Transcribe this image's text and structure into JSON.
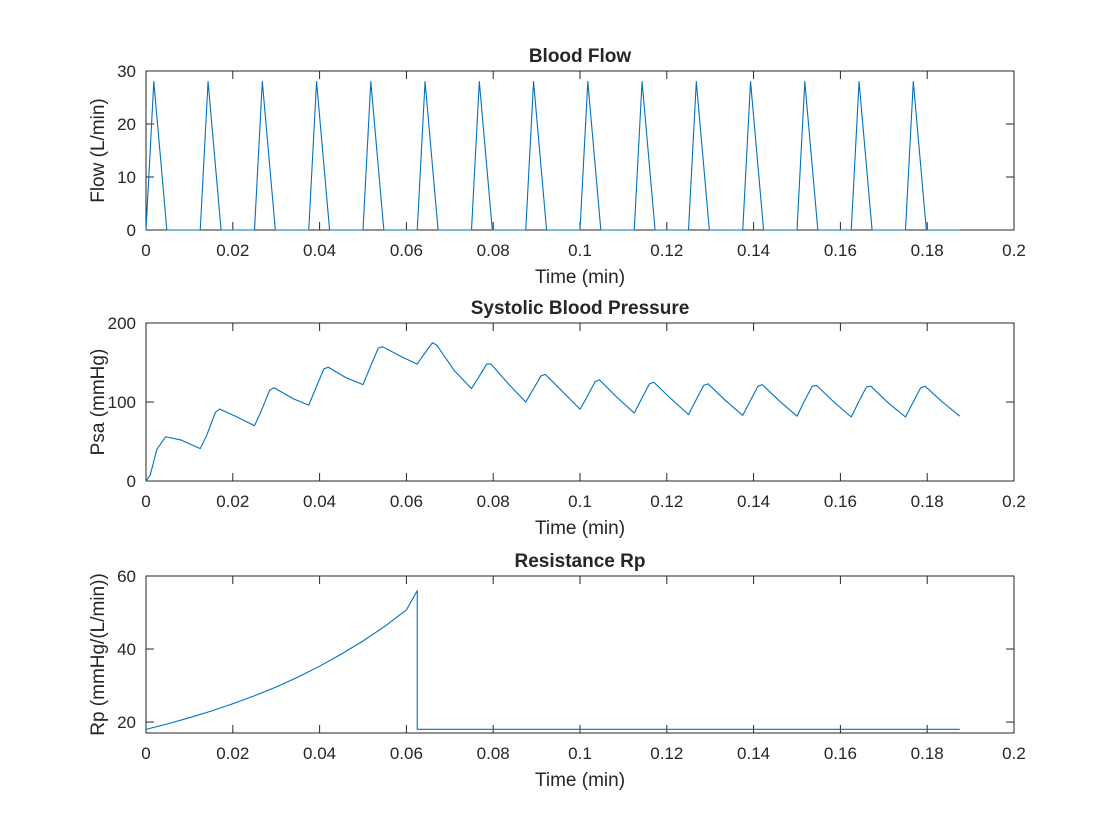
{
  "figure": {
    "background": "#ffffff",
    "axis_color": "#262626",
    "line_color": "#0072BD"
  },
  "chart_data": [
    {
      "type": "line",
      "title": "Blood Flow",
      "xlabel": "Time (min)",
      "ylabel": "Flow (L/min)",
      "xlim": [
        0,
        0.2
      ],
      "ylim": [
        0,
        30
      ],
      "xticks": [
        0,
        0.02,
        0.04,
        0.06,
        0.08,
        0.1,
        0.12,
        0.14,
        0.16,
        0.18,
        0.2
      ],
      "yticks": [
        0,
        10,
        20,
        30
      ],
      "xtick_labels": [
        "0",
        "0.02",
        "0.04",
        "0.06",
        "0.08",
        "0.1",
        "0.12",
        "0.14",
        "0.16",
        "0.18",
        "0.2"
      ],
      "ytick_labels": [
        "0",
        "10",
        "20",
        "30"
      ],
      "grid": false,
      "series": [
        {
          "x": [
            0,
            0.0018,
            0.0048,
            0.0125,
            0.0143,
            0.0173,
            0.025,
            0.0268,
            0.0298,
            0.0375,
            0.0393,
            0.0423,
            0.05,
            0.0518,
            0.0548,
            0.0625,
            0.0643,
            0.0673,
            0.075,
            0.0768,
            0.0798,
            0.0875,
            0.0893,
            0.0923,
            0.1,
            0.1018,
            0.1048,
            0.1125,
            0.1143,
            0.1173,
            0.125,
            0.1268,
            0.1298,
            0.1375,
            0.1393,
            0.1423,
            0.15,
            0.1518,
            0.1548,
            0.1625,
            0.1643,
            0.1673,
            0.175,
            0.1768,
            0.1798,
            0.1875
          ],
          "y": [
            0,
            28,
            0,
            0,
            28,
            0,
            0,
            28,
            0,
            0,
            28,
            0,
            0,
            28,
            0,
            0,
            28,
            0,
            0,
            28,
            0,
            0,
            28,
            0,
            0,
            28,
            0,
            0,
            28,
            0,
            0,
            28,
            0,
            0,
            28,
            0,
            0,
            28,
            0,
            0,
            28,
            0,
            0,
            28,
            0,
            0
          ]
        }
      ]
    },
    {
      "type": "line",
      "title": "Systolic Blood Pressure",
      "xlabel": "Time (min)",
      "ylabel": "Psa (mmHg)",
      "xlim": [
        0,
        0.2
      ],
      "ylim": [
        0,
        200
      ],
      "xticks": [
        0,
        0.02,
        0.04,
        0.06,
        0.08,
        0.1,
        0.12,
        0.14,
        0.16,
        0.18,
        0.2
      ],
      "yticks": [
        0,
        100,
        200
      ],
      "xtick_labels": [
        "0",
        "0.02",
        "0.04",
        "0.06",
        "0.08",
        "0.1",
        "0.12",
        "0.14",
        "0.16",
        "0.18",
        "0.2"
      ],
      "ytick_labels": [
        "0",
        "100",
        "200"
      ],
      "grid": false,
      "series": [
        {
          "x": [
            0,
            0.001,
            0.0025,
            0.0045,
            0.008,
            0.0125,
            0.014,
            0.016,
            0.017,
            0.021,
            0.025,
            0.0265,
            0.0285,
            0.0295,
            0.034,
            0.0375,
            0.039,
            0.041,
            0.042,
            0.046,
            0.05,
            0.0515,
            0.0535,
            0.0545,
            0.059,
            0.0625,
            0.064,
            0.066,
            0.067,
            0.071,
            0.075,
            0.0765,
            0.0785,
            0.0795,
            0.0835,
            0.0875,
            0.089,
            0.091,
            0.092,
            0.096,
            0.1,
            0.1015,
            0.1035,
            0.1045,
            0.1085,
            0.1125,
            0.114,
            0.116,
            0.117,
            0.121,
            0.125,
            0.1265,
            0.1285,
            0.1295,
            0.1335,
            0.1375,
            0.139,
            0.141,
            0.142,
            0.146,
            0.15,
            0.1515,
            0.1535,
            0.1545,
            0.1585,
            0.1625,
            0.164,
            0.166,
            0.167,
            0.171,
            0.175,
            0.1765,
            0.1785,
            0.1795,
            0.1835,
            0.1875
          ],
          "y": [
            0,
            8,
            40,
            56,
            52,
            41,
            58,
            87,
            91,
            81,
            70,
            88,
            115,
            118,
            104,
            96,
            116,
            142,
            144,
            131,
            122,
            142,
            168,
            170,
            157,
            148,
            160,
            175,
            172,
            140,
            117,
            130,
            148,
            148,
            123,
            100,
            114,
            133,
            135,
            113,
            91,
            105,
            126,
            128,
            106,
            86,
            102,
            123,
            125,
            104,
            84,
            100,
            121,
            123,
            102,
            83,
            99,
            120,
            122,
            101,
            82,
            99,
            120,
            121,
            100,
            81,
            98,
            119,
            120,
            99,
            81,
            97,
            118,
            120,
            100,
            82
          ]
        }
      ]
    },
    {
      "type": "line",
      "title": "Resistance Rp",
      "xlabel": "Time (min)",
      "ylabel": "Rp (mmHg/(L/min))",
      "xlim": [
        0,
        0.2
      ],
      "ylim": [
        17,
        60
      ],
      "xticks": [
        0,
        0.02,
        0.04,
        0.06,
        0.08,
        0.1,
        0.12,
        0.14,
        0.16,
        0.18,
        0.2
      ],
      "yticks": [
        20,
        40,
        60
      ],
      "xtick_labels": [
        "0",
        "0.02",
        "0.04",
        "0.06",
        "0.08",
        "0.1",
        "0.12",
        "0.14",
        "0.16",
        "0.18",
        "0.2"
      ],
      "ytick_labels": [
        "20",
        "40",
        "60"
      ],
      "grid": false,
      "series": [
        {
          "x": [
            0,
            0.005,
            0.01,
            0.015,
            0.02,
            0.025,
            0.03,
            0.035,
            0.04,
            0.045,
            0.05,
            0.055,
            0.06,
            0.0625,
            0.0625,
            0.1875
          ],
          "y": [
            18,
            19.5,
            21.2,
            23,
            25,
            27.2,
            29.6,
            32.3,
            35.3,
            38.6,
            42.2,
            46.2,
            50.7,
            56,
            18,
            18
          ]
        }
      ]
    }
  ]
}
